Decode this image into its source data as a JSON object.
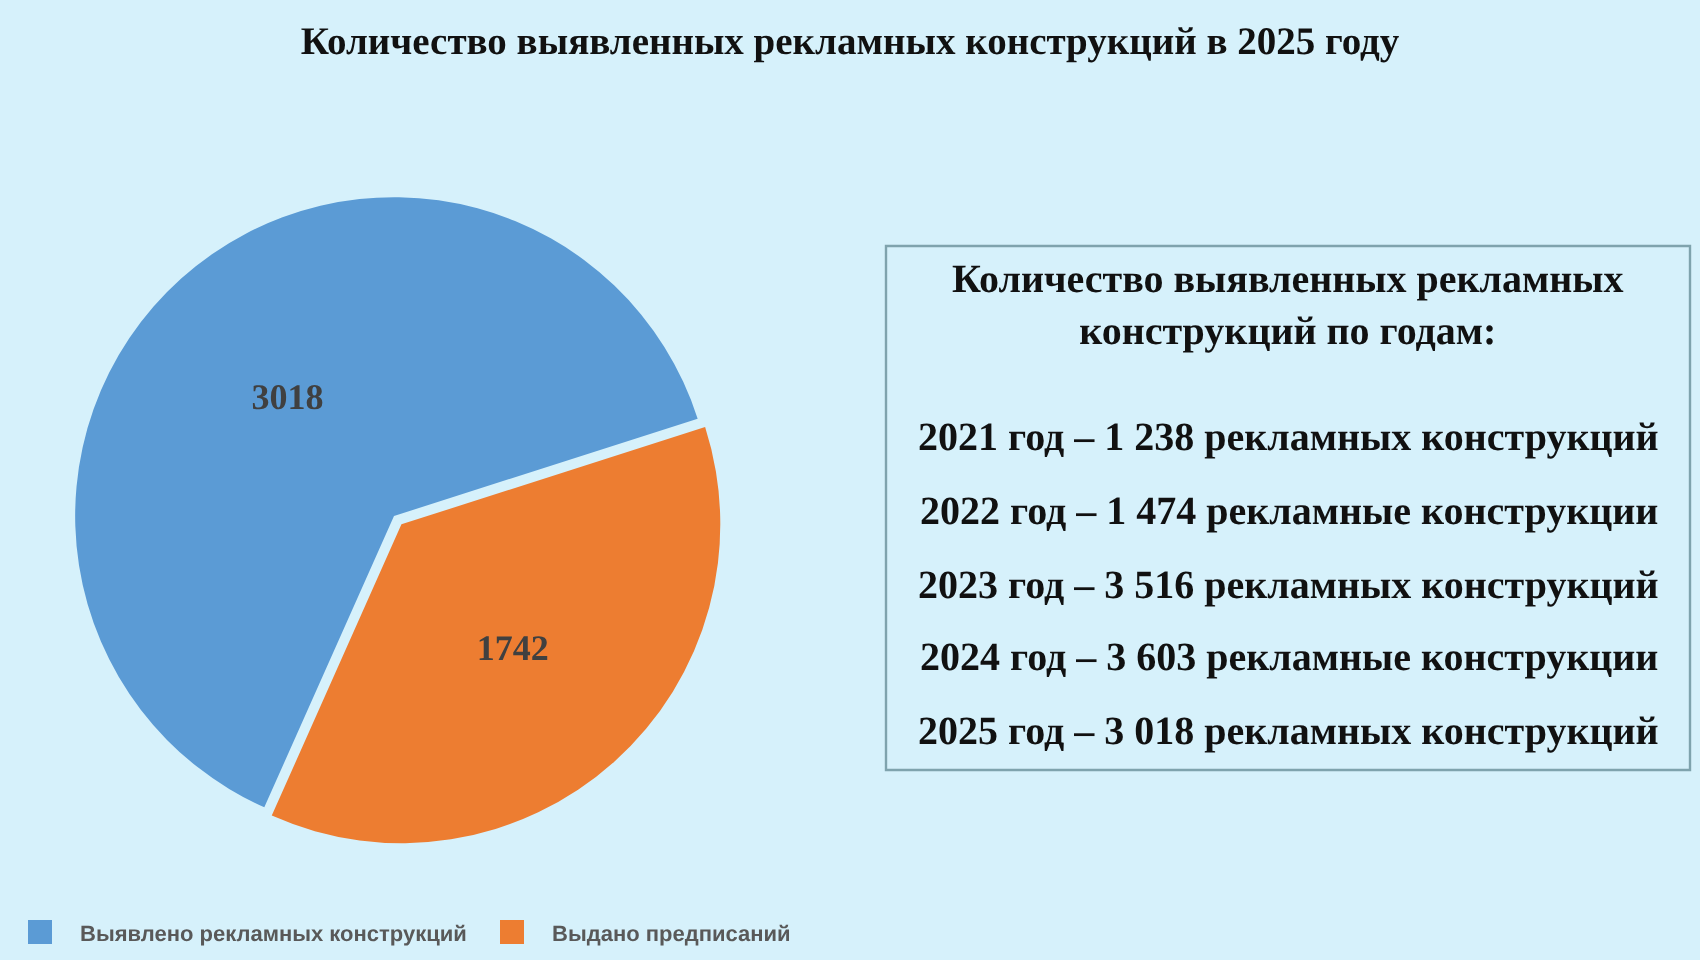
{
  "chart_data": [
    {
      "type": "pie",
      "title": "Количество выявленных рекламных конструкций в 2025 году",
      "categories": [
        "Выявлено рекламных конструкций",
        "Выдано предписаний"
      ],
      "values": [
        3018,
        1742
      ],
      "colors": [
        "#5b9bd5",
        "#ed7d31"
      ],
      "data_labels": true,
      "legend": "bottom"
    },
    {
      "type": "other",
      "title": "Количество выявленных рекламных конструкций по годам:",
      "annotations": [
        "2021 год – 1 238 рекламных конструкций",
        "2022 год – 1 474 рекламные конструкции",
        "2023 год – 3 516 рекламных конструкций",
        "2024 год – 3 603 рекламные конструкции",
        "2025 год – 3 018 рекламных конструкций"
      ]
    }
  ]
}
